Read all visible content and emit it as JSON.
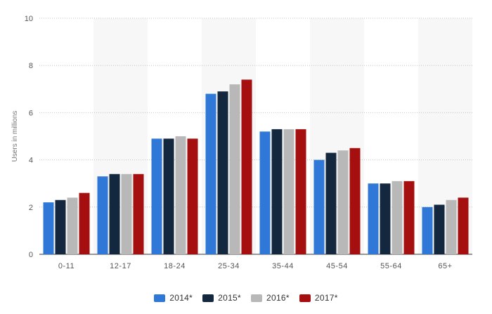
{
  "chart_data": {
    "type": "bar",
    "title": "",
    "xlabel": "",
    "ylabel": "Users in millions",
    "ylim": [
      0,
      10
    ],
    "yticks": [
      0,
      2,
      4,
      6,
      8,
      10
    ],
    "grid": true,
    "legend_position": "bottom",
    "categories": [
      "0-11",
      "12-17",
      "18-24",
      "25-34",
      "35-44",
      "45-54",
      "55-64",
      "65+"
    ],
    "series": [
      {
        "name": "2014*",
        "color": "#2f78d8",
        "values": [
          2.2,
          3.3,
          4.9,
          6.8,
          5.2,
          4.0,
          3.0,
          2.0
        ]
      },
      {
        "name": "2015*",
        "color": "#13273f",
        "values": [
          2.3,
          3.4,
          4.9,
          6.9,
          5.3,
          4.3,
          3.0,
          2.1
        ]
      },
      {
        "name": "2016*",
        "color": "#b8b8b8",
        "values": [
          2.4,
          3.4,
          5.0,
          7.2,
          5.3,
          4.4,
          3.1,
          2.3
        ]
      },
      {
        "name": "2017*",
        "color": "#a50f0f",
        "values": [
          2.6,
          3.4,
          4.9,
          7.4,
          5.3,
          4.5,
          3.1,
          2.4
        ]
      }
    ]
  }
}
